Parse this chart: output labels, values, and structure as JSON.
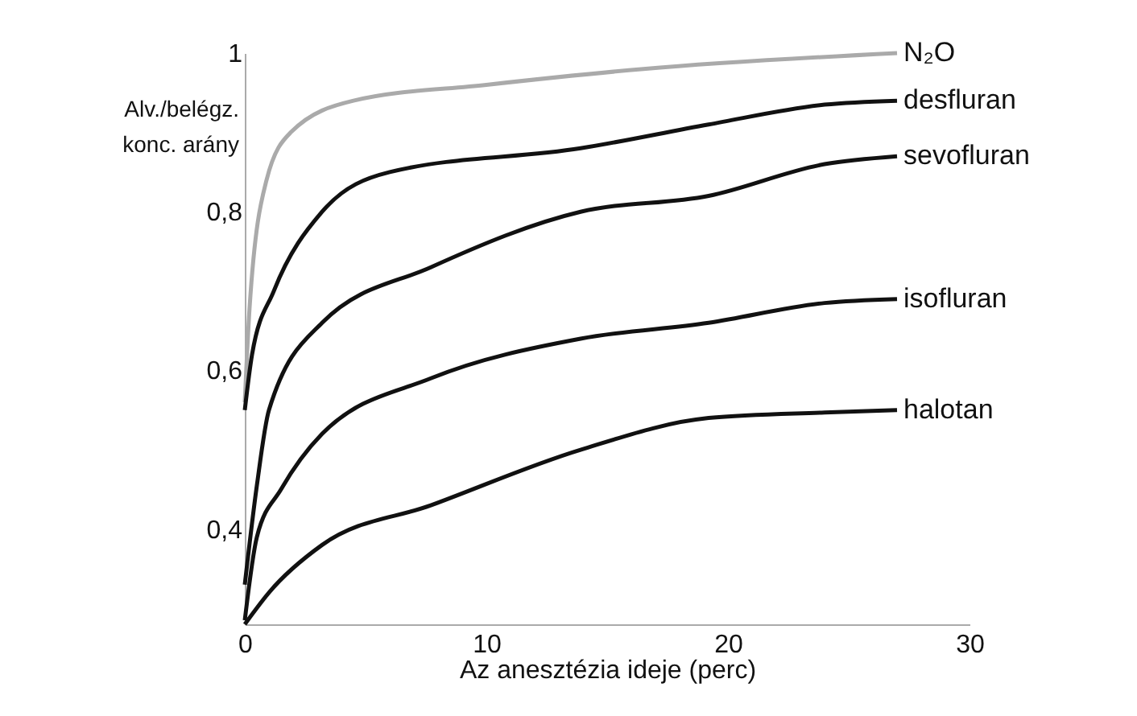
{
  "chart_data": {
    "type": "line",
    "xlabel": "Az anesztézia ideje (perc)",
    "ylabel": "Alv./belégz.\nkonc. arány",
    "xlim": [
      0,
      30
    ],
    "xticks": [
      0,
      10,
      20,
      30
    ],
    "ylim": [
      0.28,
      1
    ],
    "yticks": [
      {
        "value": 0.4,
        "label": "0,4"
      },
      {
        "value": 0.6,
        "label": "0,6"
      },
      {
        "value": 0.8,
        "label": "0,8"
      },
      1
    ],
    "grid": false,
    "legend": false,
    "marker": "none",
    "series": [
      {
        "name": "N₂O",
        "color": "#aaaaaa",
        "x": [
          0,
          0.2,
          0.9,
          1.9,
          4.5,
          10,
          16.5,
          27
        ],
        "values": [
          0.56,
          0.68,
          0.84,
          0.9,
          0.94,
          0.96,
          0.98,
          1
        ]
      },
      {
        "name": "desfluran",
        "color": "#111111",
        "x": [
          0,
          0.3,
          1.2,
          3.2,
          6,
          13.9,
          19.2,
          24,
          27
        ],
        "values": [
          0.55,
          0.62,
          0.7,
          0.8,
          0.85,
          0.88,
          0.91,
          0.935,
          0.94
        ]
      },
      {
        "name": "sevofluran",
        "color": "#111111",
        "x": [
          0,
          0.5,
          1,
          3.2,
          7.7,
          13.9,
          19.2,
          24,
          27
        ],
        "values": [
          0.33,
          0.455,
          0.55,
          0.66,
          0.73,
          0.8,
          0.82,
          0.86,
          0.87
        ]
      },
      {
        "name": "isofluran",
        "color": "#111111",
        "x": [
          0,
          0.5,
          1.5,
          3.2,
          7.7,
          13.9,
          19.2,
          24,
          27
        ],
        "values": [
          0.285,
          0.39,
          0.45,
          0.52,
          0.59,
          0.64,
          0.66,
          0.685,
          0.69
        ]
      },
      {
        "name": "halotan",
        "color": "#111111",
        "x": [
          0,
          1,
          3.2,
          7.7,
          13.9,
          19.2,
          24,
          27
        ],
        "values": [
          0.28,
          0.32,
          0.38,
          0.43,
          0.5,
          0.54,
          0.547,
          0.55
        ]
      }
    ]
  }
}
